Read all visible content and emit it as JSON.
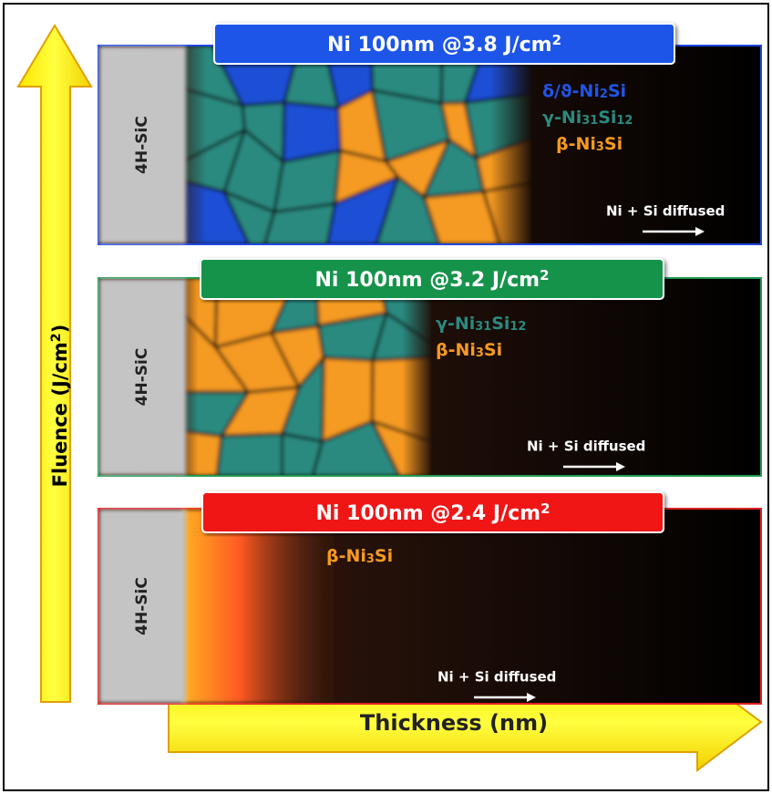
{
  "axes": {
    "vertical": [
      {
        "text": "Fluence (J/cm"
      },
      {
        "sup": "2"
      },
      {
        "text": ")"
      }
    ],
    "horizontal": [
      {
        "text": "Thickness (nm)"
      }
    ]
  },
  "panels": [
    {
      "title": [
        {
          "text": "Ni 100nm @3.8 J/cm"
        },
        {
          "sup": "2"
        }
      ],
      "substrate": "4H-SiC",
      "phases": [
        [
          {
            "text": "δ/ϑ-Ni"
          },
          {
            "sub": "2"
          },
          {
            "text": "Si"
          }
        ],
        [
          {
            "text": "γ-Ni"
          },
          {
            "sub": "31"
          },
          {
            "text": "Si"
          },
          {
            "sub": "12"
          }
        ],
        [
          {
            "text": "β-Ni"
          },
          {
            "sub": "3"
          },
          {
            "text": "Si"
          }
        ]
      ],
      "note": "Ni + Si diffused"
    },
    {
      "title": [
        {
          "text": "Ni 100nm @3.2 J/cm"
        },
        {
          "sup": "2"
        }
      ],
      "substrate": "4H-SiC",
      "phases": [
        [
          {
            "text": "γ-Ni"
          },
          {
            "sub": "31"
          },
          {
            "text": "Si"
          },
          {
            "sub": "12"
          }
        ],
        [
          {
            "text": "β-Ni"
          },
          {
            "sub": "3"
          },
          {
            "text": "Si"
          }
        ]
      ],
      "note": "Ni + Si diffused"
    },
    {
      "title": [
        {
          "text": "Ni 100nm @2.4 J/cm"
        },
        {
          "sup": "2"
        }
      ],
      "substrate": "4H-SiC",
      "phases": [
        [
          {
            "text": "β-Ni"
          },
          {
            "sub": "3"
          },
          {
            "text": "Si"
          }
        ]
      ],
      "note": "Ni + Si diffused"
    }
  ]
}
